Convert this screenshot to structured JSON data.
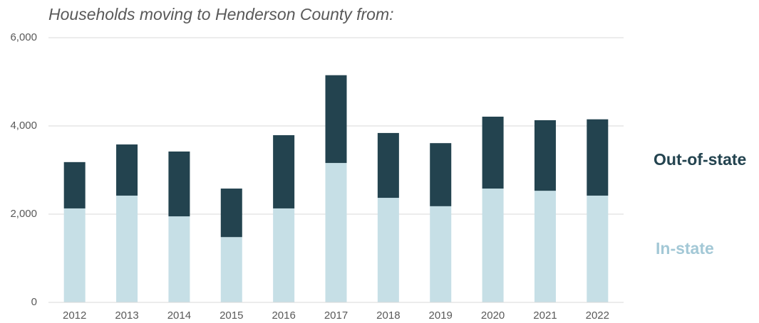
{
  "chart_data": {
    "type": "stacked_bar",
    "title": "Households moving to Henderson County from:",
    "categories": [
      "2012",
      "2013",
      "2014",
      "2015",
      "2016",
      "2017",
      "2018",
      "2019",
      "2020",
      "2021",
      "2022"
    ],
    "series": [
      {
        "name": "In-state",
        "color": "#c6dfe6",
        "values": [
          2130,
          2420,
          1950,
          1480,
          2130,
          3160,
          2370,
          2180,
          2580,
          2530,
          2420
        ]
      },
      {
        "name": "Out-of-state",
        "color": "#23434f",
        "values": [
          1050,
          1160,
          1470,
          1100,
          1660,
          1990,
          1470,
          1430,
          1630,
          1600,
          1730
        ]
      }
    ],
    "ylim": [
      0,
      6000
    ],
    "yticks": [
      0,
      {
        "value": 2000,
        "label": "2,000"
      },
      {
        "value": 4000,
        "label": "4,000"
      },
      {
        "value": 6000,
        "label": "6,000"
      }
    ],
    "grid": true
  }
}
